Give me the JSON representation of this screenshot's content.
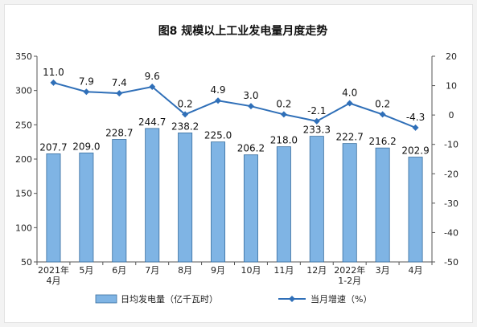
{
  "chart_data": {
    "type": "bar",
    "title": "图8  规模以上工业发电量月度走势",
    "categories": [
      [
        "2021年",
        "4月"
      ],
      [
        "5月"
      ],
      [
        "6月"
      ],
      [
        "7月"
      ],
      [
        "8月"
      ],
      [
        "9月"
      ],
      [
        "10月"
      ],
      [
        "11月"
      ],
      [
        "12月"
      ],
      [
        "2022年",
        "1-2月"
      ],
      [
        "3月"
      ],
      [
        "4月"
      ]
    ],
    "series": [
      {
        "name": "日均发电量（亿千瓦时）",
        "type": "bar",
        "axis": "left",
        "values": [
          207.7,
          209.0,
          228.7,
          244.7,
          238.2,
          225.0,
          206.2,
          218.0,
          233.3,
          222.7,
          216.2,
          202.9
        ],
        "labels": [
          "207.7",
          "209.0",
          "228.7",
          "244.7",
          "238.2",
          "225.0",
          "206.2",
          "218.0",
          "233.3",
          "222.7",
          "216.2",
          "202.9"
        ],
        "fill": "#7fb4e4",
        "stroke": "#3a6f9f"
      },
      {
        "name": "当月增速（%）",
        "type": "line",
        "axis": "right",
        "values": [
          11.0,
          7.9,
          7.4,
          9.6,
          0.2,
          4.9,
          3.0,
          0.2,
          -2.1,
          4.0,
          0.2,
          -4.3
        ],
        "labels": [
          "11.0",
          "7.9",
          "7.4",
          "9.6",
          "0.2",
          "4.9",
          "3.0",
          "0.2",
          "-2.1",
          "4.0",
          "0.2",
          "-4.3"
        ],
        "color": "#2f6fb8"
      }
    ],
    "left_axis": {
      "min": 50,
      "max": 350,
      "ticks": [
        "50",
        "100",
        "150",
        "200",
        "250",
        "300",
        "350"
      ]
    },
    "right_axis": {
      "min": -50,
      "max": 20,
      "ticks": [
        "20",
        "10",
        "0",
        "-10",
        "-20",
        "-30",
        "-40",
        "-50"
      ]
    },
    "legend_position": "bottom",
    "grid": false
  }
}
